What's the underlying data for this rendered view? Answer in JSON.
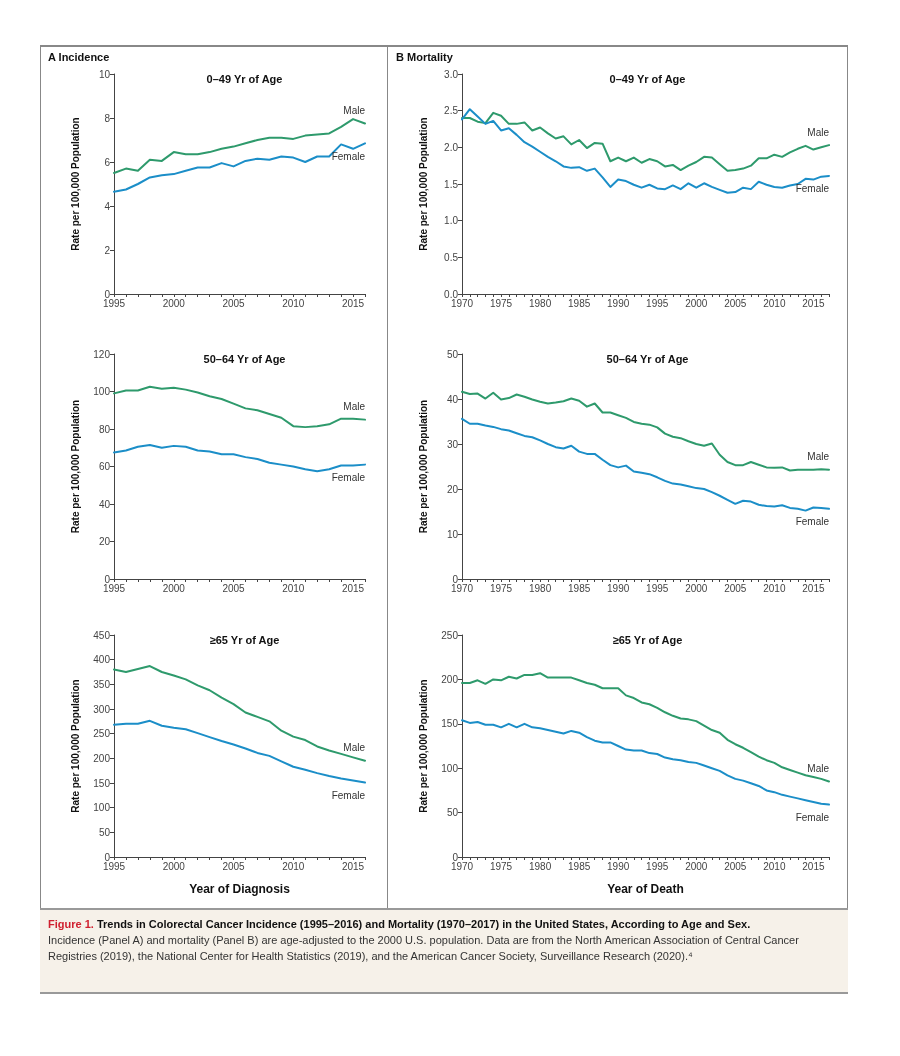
{
  "chart_data": [
    {
      "type": "line",
      "title": "0–49 Yr of Age",
      "ylabel": "Rate per 100,000 Population",
      "annotations": [
        "A  Incidence"
      ],
      "grid": false,
      "legend": false,
      "marker": "none",
      "line_style": "solid",
      "x": [
        1995,
        1996,
        1997,
        1998,
        1999,
        2000,
        2001,
        2002,
        2003,
        2004,
        2005,
        2006,
        2007,
        2008,
        2009,
        2010,
        2011,
        2012,
        2013,
        2014,
        2015,
        2016
      ],
      "xlim": [
        1995,
        2016
      ],
      "xticks": [
        1995,
        {
          "value": 1996,
          "label": null
        },
        {
          "value": 1997,
          "label": null
        },
        {
          "value": 1998,
          "label": null
        },
        {
          "value": 1999,
          "label": null
        },
        2000,
        {
          "value": 2001,
          "label": null
        },
        {
          "value": 2002,
          "label": null
        },
        {
          "value": 2003,
          "label": null
        },
        {
          "value": 2004,
          "label": null
        },
        2005,
        {
          "value": 2006,
          "label": null
        },
        {
          "value": 2007,
          "label": null
        },
        {
          "value": 2008,
          "label": null
        },
        {
          "value": 2009,
          "label": null
        },
        2010,
        {
          "value": 2011,
          "label": null
        },
        {
          "value": 2012,
          "label": null
        },
        {
          "value": 2013,
          "label": null
        },
        {
          "value": 2014,
          "label": null
        },
        2015,
        {
          "value": 2016,
          "label": null
        }
      ],
      "ylim": [
        0,
        10
      ],
      "yticks": [
        0,
        2,
        4,
        6,
        8,
        10
      ],
      "series": [
        {
          "name": "Male",
          "color": "#2e9a6c",
          "values": [
            5.5,
            5.7,
            5.6,
            6.1,
            6.05,
            6.45,
            6.35,
            6.35,
            6.45,
            6.6,
            6.7,
            6.85,
            7.0,
            7.1,
            7.1,
            7.05,
            7.2,
            7.25,
            7.3,
            7.6,
            7.95,
            7.75
          ]
        },
        {
          "name": "Female",
          "color": "#1b8ec8",
          "values": [
            4.65,
            4.75,
            5.0,
            5.3,
            5.4,
            5.45,
            5.6,
            5.75,
            5.75,
            5.95,
            5.8,
            6.05,
            6.15,
            6.1,
            6.25,
            6.2,
            6.0,
            6.25,
            6.25,
            6.8,
            6.6,
            6.85
          ]
        }
      ]
    },
    {
      "type": "line",
      "title": "0–49 Yr of Age",
      "ylabel": "Rate per 100,000 Population",
      "annotations": [
        "B  Mortality"
      ],
      "grid": false,
      "legend": false,
      "marker": "none",
      "line_style": "solid",
      "x": [
        1970,
        1971,
        1972,
        1973,
        1974,
        1975,
        1976,
        1977,
        1978,
        1979,
        1980,
        1981,
        1982,
        1983,
        1984,
        1985,
        1986,
        1987,
        1988,
        1989,
        1990,
        1991,
        1992,
        1993,
        1994,
        1995,
        1996,
        1997,
        1998,
        1999,
        2000,
        2001,
        2002,
        2003,
        2004,
        2005,
        2006,
        2007,
        2008,
        2009,
        2010,
        2011,
        2012,
        2013,
        2014,
        2015,
        2016,
        2017
      ],
      "xlim": [
        1970,
        2017
      ],
      "xticks": [
        1970,
        {
          "value": 1971,
          "label": null
        },
        {
          "value": 1972,
          "label": null
        },
        {
          "value": 1973,
          "label": null
        },
        {
          "value": 1974,
          "label": null
        },
        1975,
        {
          "value": 1976,
          "label": null
        },
        {
          "value": 1977,
          "label": null
        },
        {
          "value": 1978,
          "label": null
        },
        {
          "value": 1979,
          "label": null
        },
        1980,
        {
          "value": 1981,
          "label": null
        },
        {
          "value": 1982,
          "label": null
        },
        {
          "value": 1983,
          "label": null
        },
        {
          "value": 1984,
          "label": null
        },
        1985,
        {
          "value": 1986,
          "label": null
        },
        {
          "value": 1987,
          "label": null
        },
        {
          "value": 1988,
          "label": null
        },
        {
          "value": 1989,
          "label": null
        },
        1990,
        {
          "value": 1991,
          "label": null
        },
        {
          "value": 1992,
          "label": null
        },
        {
          "value": 1993,
          "label": null
        },
        {
          "value": 1994,
          "label": null
        },
        1995,
        {
          "value": 1996,
          "label": null
        },
        {
          "value": 1997,
          "label": null
        },
        {
          "value": 1998,
          "label": null
        },
        {
          "value": 1999,
          "label": null
        },
        2000,
        {
          "value": 2001,
          "label": null
        },
        {
          "value": 2002,
          "label": null
        },
        {
          "value": 2003,
          "label": null
        },
        {
          "value": 2004,
          "label": null
        },
        2005,
        {
          "value": 2006,
          "label": null
        },
        {
          "value": 2007,
          "label": null
        },
        {
          "value": 2008,
          "label": null
        },
        {
          "value": 2009,
          "label": null
        },
        2010,
        {
          "value": 2011,
          "label": null
        },
        {
          "value": 2012,
          "label": null
        },
        {
          "value": 2013,
          "label": null
        },
        {
          "value": 2014,
          "label": null
        },
        2015,
        {
          "value": 2016,
          "label": null
        },
        {
          "value": 2017,
          "label": null
        }
      ],
      "ylim": [
        0,
        3
      ],
      "yticks": [
        {
          "value": 0,
          "label": "0.0"
        },
        0.5,
        {
          "value": 1,
          "label": "1.0"
        },
        1.5,
        {
          "value": 2,
          "label": "2.0"
        },
        2.5,
        {
          "value": 3,
          "label": "3.0"
        }
      ],
      "series": [
        {
          "name": "Male",
          "color": "#2e9a6c",
          "values": [
            2.4,
            2.4,
            2.35,
            2.33,
            2.47,
            2.43,
            2.32,
            2.32,
            2.34,
            2.23,
            2.27,
            2.19,
            2.12,
            2.15,
            2.04,
            2.1,
            1.99,
            2.06,
            2.05,
            1.81,
            1.86,
            1.81,
            1.86,
            1.79,
            1.84,
            1.81,
            1.74,
            1.76,
            1.69,
            1.75,
            1.8,
            1.87,
            1.86,
            1.77,
            1.68,
            1.69,
            1.71,
            1.75,
            1.85,
            1.85,
            1.9,
            1.87,
            1.93,
            1.98,
            2.02,
            1.97,
            2.0,
            2.03
          ]
        },
        {
          "name": "Female",
          "color": "#1b8ec8",
          "values": [
            2.38,
            2.52,
            2.42,
            2.32,
            2.36,
            2.23,
            2.26,
            2.17,
            2.07,
            2.01,
            1.94,
            1.87,
            1.81,
            1.74,
            1.72,
            1.73,
            1.68,
            1.71,
            1.59,
            1.46,
            1.56,
            1.54,
            1.49,
            1.45,
            1.49,
            1.44,
            1.43,
            1.48,
            1.43,
            1.51,
            1.45,
            1.51,
            1.46,
            1.42,
            1.38,
            1.39,
            1.45,
            1.43,
            1.53,
            1.49,
            1.46,
            1.45,
            1.48,
            1.5,
            1.57,
            1.56,
            1.6,
            1.61
          ]
        }
      ]
    },
    {
      "type": "line",
      "title": "50–64 Yr of Age",
      "ylabel": "Rate per 100,000 Population",
      "grid": false,
      "legend": false,
      "marker": "none",
      "line_style": "solid",
      "x": [
        1995,
        1996,
        1997,
        1998,
        1999,
        2000,
        2001,
        2002,
        2003,
        2004,
        2005,
        2006,
        2007,
        2008,
        2009,
        2010,
        2011,
        2012,
        2013,
        2014,
        2015,
        2016
      ],
      "xlim": [
        1995,
        2016
      ],
      "xticks": [
        1995,
        {
          "value": 1996,
          "label": null
        },
        {
          "value": 1997,
          "label": null
        },
        {
          "value": 1998,
          "label": null
        },
        {
          "value": 1999,
          "label": null
        },
        2000,
        {
          "value": 2001,
          "label": null
        },
        {
          "value": 2002,
          "label": null
        },
        {
          "value": 2003,
          "label": null
        },
        {
          "value": 2004,
          "label": null
        },
        2005,
        {
          "value": 2006,
          "label": null
        },
        {
          "value": 2007,
          "label": null
        },
        {
          "value": 2008,
          "label": null
        },
        {
          "value": 2009,
          "label": null
        },
        2010,
        {
          "value": 2011,
          "label": null
        },
        {
          "value": 2012,
          "label": null
        },
        {
          "value": 2013,
          "label": null
        },
        {
          "value": 2014,
          "label": null
        },
        2015,
        {
          "value": 2016,
          "label": null
        }
      ],
      "ylim": [
        0,
        120
      ],
      "yticks": [
        0,
        20,
        40,
        60,
        80,
        100,
        120
      ],
      "series": [
        {
          "name": "Male",
          "color": "#2e9a6c",
          "values": [
            99,
            100.5,
            100.5,
            102.5,
            101.5,
            102,
            101,
            99.5,
            97.5,
            96,
            93.5,
            91,
            90,
            88,
            86,
            81.5,
            81,
            81.5,
            82.5,
            85.5,
            85.5,
            85
          ]
        },
        {
          "name": "Female",
          "color": "#1b8ec8",
          "values": [
            67.5,
            68.5,
            70.5,
            71.5,
            70,
            71,
            70.5,
            68.5,
            68,
            66.5,
            66.5,
            65,
            64,
            62,
            61,
            60,
            58.5,
            57.5,
            58.5,
            60.5,
            60.5,
            61
          ]
        }
      ]
    },
    {
      "type": "line",
      "title": "50–64 Yr of Age",
      "ylabel": "Rate per 100,000 Population",
      "grid": false,
      "legend": false,
      "marker": "none",
      "line_style": "solid",
      "x": [
        1970,
        1971,
        1972,
        1973,
        1974,
        1975,
        1976,
        1977,
        1978,
        1979,
        1980,
        1981,
        1982,
        1983,
        1984,
        1985,
        1986,
        1987,
        1988,
        1989,
        1990,
        1991,
        1992,
        1993,
        1994,
        1995,
        1996,
        1997,
        1998,
        1999,
        2000,
        2001,
        2002,
        2003,
        2004,
        2005,
        2006,
        2007,
        2008,
        2009,
        2010,
        2011,
        2012,
        2013,
        2014,
        2015,
        2016,
        2017
      ],
      "xlim": [
        1970,
        2017
      ],
      "xticks": [
        1970,
        {
          "value": 1971,
          "label": null
        },
        {
          "value": 1972,
          "label": null
        },
        {
          "value": 1973,
          "label": null
        },
        {
          "value": 1974,
          "label": null
        },
        1975,
        {
          "value": 1976,
          "label": null
        },
        {
          "value": 1977,
          "label": null
        },
        {
          "value": 1978,
          "label": null
        },
        {
          "value": 1979,
          "label": null
        },
        1980,
        {
          "value": 1981,
          "label": null
        },
        {
          "value": 1982,
          "label": null
        },
        {
          "value": 1983,
          "label": null
        },
        {
          "value": 1984,
          "label": null
        },
        1985,
        {
          "value": 1986,
          "label": null
        },
        {
          "value": 1987,
          "label": null
        },
        {
          "value": 1988,
          "label": null
        },
        {
          "value": 1989,
          "label": null
        },
        1990,
        {
          "value": 1991,
          "label": null
        },
        {
          "value": 1992,
          "label": null
        },
        {
          "value": 1993,
          "label": null
        },
        {
          "value": 1994,
          "label": null
        },
        1995,
        {
          "value": 1996,
          "label": null
        },
        {
          "value": 1997,
          "label": null
        },
        {
          "value": 1998,
          "label": null
        },
        {
          "value": 1999,
          "label": null
        },
        2000,
        {
          "value": 2001,
          "label": null
        },
        {
          "value": 2002,
          "label": null
        },
        {
          "value": 2003,
          "label": null
        },
        {
          "value": 2004,
          "label": null
        },
        2005,
        {
          "value": 2006,
          "label": null
        },
        {
          "value": 2007,
          "label": null
        },
        {
          "value": 2008,
          "label": null
        },
        {
          "value": 2009,
          "label": null
        },
        2010,
        {
          "value": 2011,
          "label": null
        },
        {
          "value": 2012,
          "label": null
        },
        {
          "value": 2013,
          "label": null
        },
        {
          "value": 2014,
          "label": null
        },
        2015,
        {
          "value": 2016,
          "label": null
        },
        {
          "value": 2017,
          "label": null
        }
      ],
      "ylim": [
        0,
        50
      ],
      "yticks": [
        0,
        10,
        20,
        30,
        40,
        50
      ],
      "series": [
        {
          "name": "Male",
          "color": "#2e9a6c",
          "values": [
            41.6,
            41.1,
            41.2,
            40.1,
            41.4,
            39.9,
            40.2,
            41.0,
            40.5,
            39.9,
            39.4,
            39.0,
            39.2,
            39.5,
            40.1,
            39.6,
            38.3,
            39.0,
            37.0,
            37.0,
            36.4,
            35.8,
            34.9,
            34.5,
            34.3,
            33.7,
            32.3,
            31.6,
            31.3,
            30.6,
            30.0,
            29.6,
            30.1,
            27.6,
            26.0,
            25.3,
            25.3,
            26.0,
            25.4,
            24.8,
            24.7,
            24.8,
            24.1,
            24.3,
            24.3,
            24.3,
            24.4,
            24.3
          ]
        },
        {
          "name": "Female",
          "color": "#1b8ec8",
          "values": [
            35.6,
            34.5,
            34.5,
            34.1,
            33.8,
            33.3,
            33.0,
            32.4,
            31.8,
            31.5,
            30.8,
            30.0,
            29.3,
            29.0,
            29.6,
            28.3,
            27.8,
            27.8,
            26.5,
            25.3,
            24.8,
            25.2,
            23.9,
            23.6,
            23.3,
            22.6,
            21.8,
            21.2,
            21.0,
            20.6,
            20.2,
            20.0,
            19.3,
            18.5,
            17.6,
            16.7,
            17.4,
            17.2,
            16.5,
            16.2,
            16.1,
            16.4,
            15.8,
            15.6,
            15.2,
            15.9,
            15.8,
            15.6
          ]
        }
      ]
    },
    {
      "type": "line",
      "title": "≥65 Yr of Age",
      "xlabel": "Year of Diagnosis",
      "ylabel": "Rate per 100,000 Population",
      "grid": false,
      "legend": false,
      "marker": "none",
      "line_style": "solid",
      "x": [
        1995,
        1996,
        1997,
        1998,
        1999,
        2000,
        2001,
        2002,
        2003,
        2004,
        2005,
        2006,
        2007,
        2008,
        2009,
        2010,
        2011,
        2012,
        2013,
        2014,
        2015,
        2016
      ],
      "xlim": [
        1995,
        2016
      ],
      "xticks": [
        1995,
        {
          "value": 1996,
          "label": null
        },
        {
          "value": 1997,
          "label": null
        },
        {
          "value": 1998,
          "label": null
        },
        {
          "value": 1999,
          "label": null
        },
        2000,
        {
          "value": 2001,
          "label": null
        },
        {
          "value": 2002,
          "label": null
        },
        {
          "value": 2003,
          "label": null
        },
        {
          "value": 2004,
          "label": null
        },
        2005,
        {
          "value": 2006,
          "label": null
        },
        {
          "value": 2007,
          "label": null
        },
        {
          "value": 2008,
          "label": null
        },
        {
          "value": 2009,
          "label": null
        },
        2010,
        {
          "value": 2011,
          "label": null
        },
        {
          "value": 2012,
          "label": null
        },
        {
          "value": 2013,
          "label": null
        },
        {
          "value": 2014,
          "label": null
        },
        2015,
        {
          "value": 2016,
          "label": null
        }
      ],
      "ylim": [
        0,
        450
      ],
      "yticks": [
        0,
        50,
        100,
        150,
        200,
        250,
        300,
        350,
        400,
        450
      ],
      "series": [
        {
          "name": "Male",
          "color": "#2e9a6c",
          "values": [
            380,
            375,
            381,
            387,
            375,
            368,
            360,
            348,
            338,
            323,
            310,
            293,
            284,
            275,
            256,
            244,
            237,
            224,
            216,
            209,
            202,
            195
          ]
        },
        {
          "name": "Female",
          "color": "#1b8ec8",
          "values": [
            268,
            270,
            270,
            276,
            266,
            262,
            259,
            251,
            243,
            235,
            228,
            220,
            211,
            205,
            194,
            183,
            177,
            170,
            164,
            159,
            155,
            151
          ]
        }
      ]
    },
    {
      "type": "line",
      "title": "≥65 Yr of Age",
      "xlabel": "Year of Death",
      "ylabel": "Rate per 100,000 Population",
      "grid": false,
      "legend": false,
      "marker": "none",
      "line_style": "solid",
      "annotations": [
        "Figure 1.",
        "Trends in Colorectal Cancer Incidence (1995–2016) and Mortality (1970–2017) in the United States, According to Age and Sex.",
        "Incidence (Panel A) and mortality (Panel B) are age-adjusted to the 2000 U.S. population. Data are from the North American Association of Central Cancer Registries (2019), the National Center for Health Statistics (2019), and the American Cancer Society, Surveillance Research (2020).⁴"
      ],
      "x": [
        1970,
        1971,
        1972,
        1973,
        1974,
        1975,
        1976,
        1977,
        1978,
        1979,
        1980,
        1981,
        1982,
        1983,
        1984,
        1985,
        1986,
        1987,
        1988,
        1989,
        1990,
        1991,
        1992,
        1993,
        1994,
        1995,
        1996,
        1997,
        1998,
        1999,
        2000,
        2001,
        2002,
        2003,
        2004,
        2005,
        2006,
        2007,
        2008,
        2009,
        2010,
        2011,
        2012,
        2013,
        2014,
        2015,
        2016,
        2017
      ],
      "xlim": [
        1970,
        2017
      ],
      "xticks": [
        1970,
        {
          "value": 1971,
          "label": null
        },
        {
          "value": 1972,
          "label": null
        },
        {
          "value": 1973,
          "label": null
        },
        {
          "value": 1974,
          "label": null
        },
        1975,
        {
          "value": 1976,
          "label": null
        },
        {
          "value": 1977,
          "label": null
        },
        {
          "value": 1978,
          "label": null
        },
        {
          "value": 1979,
          "label": null
        },
        1980,
        {
          "value": 1981,
          "label": null
        },
        {
          "value": 1982,
          "label": null
        },
        {
          "value": 1983,
          "label": null
        },
        {
          "value": 1984,
          "label": null
        },
        1985,
        {
          "value": 1986,
          "label": null
        },
        {
          "value": 1987,
          "label": null
        },
        {
          "value": 1988,
          "label": null
        },
        {
          "value": 1989,
          "label": null
        },
        1990,
        {
          "value": 1991,
          "label": null
        },
        {
          "value": 1992,
          "label": null
        },
        {
          "value": 1993,
          "label": null
        },
        {
          "value": 1994,
          "label": null
        },
        1995,
        {
          "value": 1996,
          "label": null
        },
        {
          "value": 1997,
          "label": null
        },
        {
          "value": 1998,
          "label": null
        },
        {
          "value": 1999,
          "label": null
        },
        2000,
        {
          "value": 2001,
          "label": null
        },
        {
          "value": 2002,
          "label": null
        },
        {
          "value": 2003,
          "label": null
        },
        {
          "value": 2004,
          "label": null
        },
        2005,
        {
          "value": 2006,
          "label": null
        },
        {
          "value": 2007,
          "label": null
        },
        {
          "value": 2008,
          "label": null
        },
        {
          "value": 2009,
          "label": null
        },
        2010,
        {
          "value": 2011,
          "label": null
        },
        {
          "value": 2012,
          "label": null
        },
        {
          "value": 2013,
          "label": null
        },
        {
          "value": 2014,
          "label": null
        },
        2015,
        {
          "value": 2016,
          "label": null
        },
        {
          "value": 2017,
          "label": null
        }
      ],
      "ylim": [
        0,
        250
      ],
      "yticks": [
        0,
        50,
        100,
        150,
        200,
        250
      ],
      "series": [
        {
          "name": "Male",
          "color": "#2e9a6c",
          "values": [
            196,
            196,
            199,
            195,
            200,
            199,
            203,
            201,
            205,
            205,
            207,
            202,
            202,
            202,
            202,
            199,
            196,
            194,
            190,
            190,
            190,
            182,
            179,
            174,
            172,
            168,
            163,
            159,
            156,
            155,
            153,
            148,
            143,
            140,
            132,
            127,
            123,
            118,
            113,
            109,
            106,
            101,
            98,
            95,
            92,
            90,
            88,
            85
          ]
        },
        {
          "name": "Female",
          "color": "#1b8ec8",
          "values": [
            154,
            151,
            152,
            149,
            149,
            146,
            150,
            146,
            150,
            146,
            145,
            143,
            141,
            139,
            142,
            140,
            135,
            131,
            129,
            129,
            125,
            121,
            120,
            120,
            117,
            116,
            112,
            110,
            109,
            107,
            106,
            103,
            100,
            97,
            92,
            88,
            86,
            83,
            80,
            75,
            73,
            70,
            68,
            66,
            64,
            62,
            60,
            59
          ]
        }
      ]
    }
  ]
}
